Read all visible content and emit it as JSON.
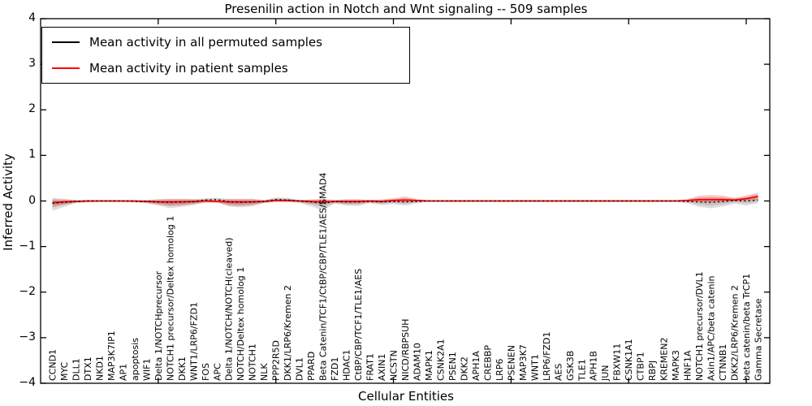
{
  "chart": {
    "title": "Presenilin action in Notch and Wnt signaling -- 509 samples",
    "xlabel": "Cellular Entities",
    "ylabel": "Inferred Activity"
  },
  "chart_data": {
    "type": "line",
    "title": "Presenilin action in Notch and Wnt signaling -- 509 samples",
    "xlabel": "Cellular Entities",
    "ylabel": "Inferred Activity",
    "ylim": [
      -4,
      4
    ],
    "yticks": [
      "4",
      "3",
      "2",
      "1",
      "0",
      "−1",
      "−2",
      "−3",
      "−4"
    ],
    "grid": false,
    "legend_position": "upper left",
    "categories": [
      "CCND1",
      "MYC",
      "DLL1",
      "DTX1",
      "NKD1",
      "MAP3K7IP1",
      "AP1",
      "apoptosis",
      "WIF1",
      "Delta 1/NOTCHprecursor",
      "NOTCH1 precursor/Deltex homolog 1",
      "DKK1",
      "WNT1/LRP6/FZD1",
      "FOS",
      "APC",
      "Delta 1/NOTCH/NOTCH(cleaved)",
      "NOTCH/Deltex homolog 1",
      "NOTCH1",
      "NLK",
      "PPP2R5D",
      "DKK1/LRP6/Kremen 2",
      "DVL1",
      "PPARD",
      "Beta Catenin/TCF1/CtBP/CBP/TLE1/AES/SMAD4",
      "FZD1",
      "HDAC1",
      "CtBP/CBP/TCF1/TLE1/AES",
      "FRAT1",
      "AXIN1",
      "NCSTN",
      "NICD/RBPSUH",
      "ADAM10",
      "MAPK1",
      "CSNK2A1",
      "PSEN1",
      "DKK2",
      "APH1A",
      "CREBBP",
      "LRP6",
      "PSENEN",
      "MAP3K7",
      "WNT1",
      "LRP6/FZD1",
      "AES",
      "GSK3B",
      "TLE1",
      "APH1B",
      "JUN",
      "FBXW11",
      "CSNK1A1",
      "CTBP1",
      "RBPJ",
      "KREMEN2",
      "MAPK3",
      "HNF1A",
      "NOTCH1 precursor/DVL1",
      "Axin1/APC/beta catenin",
      "CTNNB1",
      "DKK2/LRP6/Kremen 2",
      "beta catenin/beta TrCP1",
      "Gamma Secretase"
    ],
    "series": [
      {
        "name": "Mean activity in all permuted samples",
        "color": "#000000",
        "line_style": "dotted",
        "band_color": "#909090",
        "values": [
          -0.05,
          -0.03,
          -0.01,
          0,
          0,
          0,
          0,
          -0.01,
          -0.01,
          -0.02,
          -0.03,
          -0.02,
          -0.02,
          0.02,
          0.03,
          -0.02,
          -0.03,
          -0.02,
          -0.01,
          0.03,
          0.02,
          0,
          -0.02,
          -0.05,
          -0.01,
          -0.02,
          -0.02,
          -0.01,
          -0.02,
          -0.01,
          -0.02,
          -0.01,
          0,
          0,
          0,
          0,
          0,
          0,
          0,
          0,
          0,
          0,
          0,
          0,
          0,
          0,
          0,
          0,
          0,
          0,
          0,
          0,
          0,
          0,
          -0.01,
          -0.02,
          -0.03,
          -0.01,
          0.01,
          0,
          0.02
        ],
        "band_lo": [
          -0.22,
          -0.13,
          -0.05,
          -0.03,
          -0.02,
          -0.02,
          -0.02,
          -0.03,
          -0.05,
          -0.1,
          -0.16,
          -0.13,
          -0.09,
          -0.04,
          -0.02,
          -0.12,
          -0.14,
          -0.12,
          -0.05,
          -0.02,
          -0.03,
          -0.04,
          -0.12,
          -0.2,
          -0.06,
          -0.1,
          -0.11,
          -0.05,
          -0.09,
          -0.07,
          -0.1,
          -0.05,
          -0.02,
          -0.02,
          -0.02,
          -0.02,
          -0.02,
          -0.02,
          -0.02,
          -0.02,
          -0.02,
          -0.02,
          -0.02,
          -0.02,
          -0.02,
          -0.02,
          -0.02,
          -0.02,
          -0.02,
          -0.02,
          -0.02,
          -0.02,
          -0.02,
          -0.02,
          -0.05,
          -0.13,
          -0.16,
          -0.12,
          -0.06,
          -0.1,
          -0.05
        ],
        "band_hi": [
          0.07,
          0.05,
          0.02,
          0.02,
          0.01,
          0.01,
          0.01,
          0.01,
          0.02,
          0.03,
          0.04,
          0.04,
          0.04,
          0.06,
          0.07,
          0.04,
          0.04,
          0.04,
          0.02,
          0.08,
          0.07,
          0.02,
          0.03,
          0.03,
          0.02,
          0.03,
          0.03,
          0.02,
          0.03,
          0.03,
          0.04,
          0.02,
          0.01,
          0.01,
          0.01,
          0.01,
          0.01,
          0.01,
          0.01,
          0.01,
          0.01,
          0.01,
          0.01,
          0.01,
          0.01,
          0.01,
          0.01,
          0.01,
          0.01,
          0.01,
          0.01,
          0.01,
          0.01,
          0.01,
          0.02,
          0.04,
          0.04,
          0.05,
          0.05,
          0.05,
          0.08
        ]
      },
      {
        "name": "Mean activity in patient samples",
        "color": "#ff0000",
        "line_style": "solid",
        "band_color": "#e05050",
        "values": [
          -0.04,
          -0.02,
          -0.01,
          0,
          0,
          0,
          0,
          0,
          -0.01,
          -0.02,
          -0.02,
          -0.02,
          -0.01,
          0,
          -0.01,
          -0.02,
          -0.02,
          -0.02,
          -0.01,
          0.01,
          0.01,
          0,
          -0.01,
          -0.02,
          -0.01,
          -0.01,
          -0.01,
          0,
          -0.01,
          0.01,
          0.02,
          0.01,
          0,
          0,
          0,
          0,
          0,
          0,
          0,
          0,
          0,
          0,
          0,
          0,
          0,
          0,
          0,
          0,
          0,
          0,
          0,
          0,
          0,
          0,
          0.01,
          0.03,
          0.03,
          0.03,
          0.02,
          0.05,
          0.1
        ],
        "band_lo": [
          -0.13,
          -0.08,
          -0.03,
          -0.02,
          -0.02,
          -0.02,
          -0.02,
          -0.02,
          -0.04,
          -0.08,
          -0.11,
          -0.1,
          -0.07,
          -0.03,
          -0.04,
          -0.1,
          -0.11,
          -0.09,
          -0.04,
          -0.02,
          -0.02,
          -0.03,
          -0.06,
          -0.08,
          -0.04,
          -0.07,
          -0.07,
          -0.03,
          -0.05,
          -0.03,
          -0.04,
          -0.02,
          -0.01,
          -0.01,
          -0.01,
          -0.01,
          -0.01,
          -0.01,
          -0.01,
          -0.01,
          -0.01,
          -0.01,
          -0.01,
          -0.01,
          -0.01,
          -0.01,
          -0.01,
          -0.01,
          -0.01,
          -0.01,
          -0.01,
          -0.01,
          -0.01,
          -0.01,
          -0.02,
          -0.03,
          -0.04,
          -0.03,
          -0.01,
          0.0,
          0.02
        ],
        "band_hi": [
          0.04,
          0.03,
          0.02,
          0.01,
          0.01,
          0.01,
          0.01,
          0.01,
          0.02,
          0.04,
          0.05,
          0.05,
          0.04,
          0.03,
          0.02,
          0.05,
          0.05,
          0.05,
          0.02,
          0.04,
          0.04,
          0.02,
          0.03,
          0.05,
          0.02,
          0.04,
          0.04,
          0.02,
          0.03,
          0.06,
          0.1,
          0.04,
          0.01,
          0.01,
          0.01,
          0.01,
          0.01,
          0.01,
          0.01,
          0.01,
          0.01,
          0.01,
          0.01,
          0.01,
          0.01,
          0.01,
          0.01,
          0.01,
          0.01,
          0.01,
          0.01,
          0.01,
          0.01,
          0.01,
          0.04,
          0.12,
          0.13,
          0.12,
          0.07,
          0.12,
          0.18
        ]
      }
    ]
  }
}
